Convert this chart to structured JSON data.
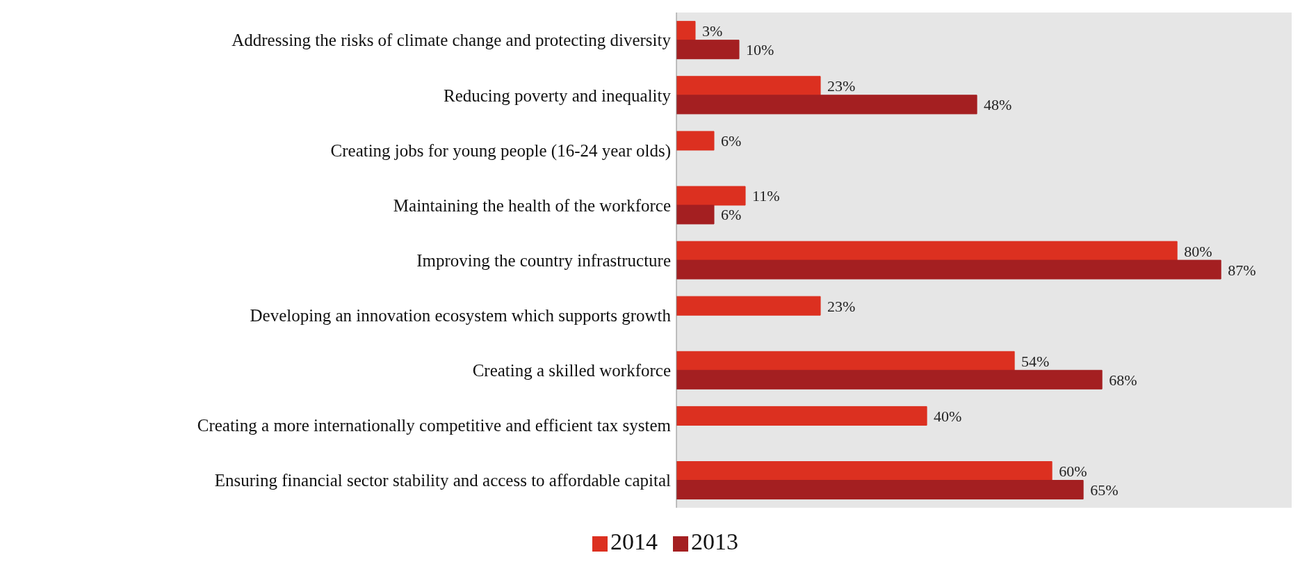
{
  "chart_data": {
    "type": "bar",
    "orientation": "horizontal",
    "categories": [
      "Addressing the risks of climate change and protecting diversity",
      "Reducing poverty and inequality",
      "Creating jobs for young people (16-24 year olds)",
      "Maintaining the health of the workforce",
      "Improving the country infrastructure",
      "Developing an innovation ecosystem which supports growth",
      "Creating a skilled workforce",
      "Creating a more internationally competitive and efficient tax system",
      "Ensuring financial sector stability and access to affordable capital"
    ],
    "series": [
      {
        "name": "2014",
        "color": "#dc3020",
        "values": [
          3,
          23,
          6,
          11,
          80,
          23,
          54,
          40,
          60
        ],
        "value_labels": [
          "3%",
          "23%",
          "6%",
          "11%",
          "80%",
          "23%",
          "54%",
          "40%",
          "60%"
        ]
      },
      {
        "name": "2013",
        "color": "#a41f21",
        "values": [
          10,
          48,
          null,
          6,
          87,
          null,
          68,
          null,
          65
        ],
        "value_labels": [
          "10%",
          "48%",
          null,
          "6%",
          "87%",
          null,
          "68%",
          null,
          "65%"
        ]
      }
    ],
    "legend": "bottom",
    "grid": false
  }
}
